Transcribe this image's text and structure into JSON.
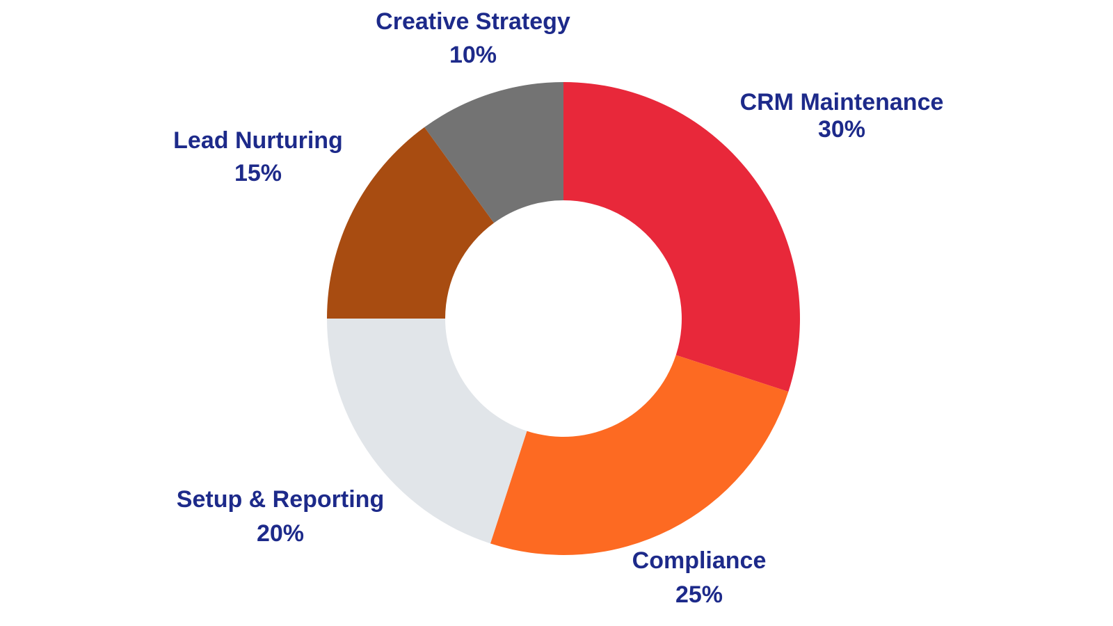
{
  "chart_data": {
    "type": "pie",
    "donut": true,
    "title": "",
    "legend": "none",
    "slices": [
      {
        "label": "CRM Maintenance",
        "value": 30,
        "value_label": "30%",
        "color": "#e8283a"
      },
      {
        "label": "Compliance",
        "value": 25,
        "value_label": "25%",
        "color": "#fd6a22"
      },
      {
        "label": "Setup & Reporting",
        "value": 20,
        "value_label": "20%",
        "color": "#e1e5e9"
      },
      {
        "label": "Lead Nurturing",
        "value": 15,
        "value_label": "15%",
        "color": "#a84c11"
      },
      {
        "label": "Creative Strategy",
        "value": 10,
        "value_label": "10%",
        "color": "#737373"
      }
    ],
    "label_color": "#1d2a8a"
  }
}
